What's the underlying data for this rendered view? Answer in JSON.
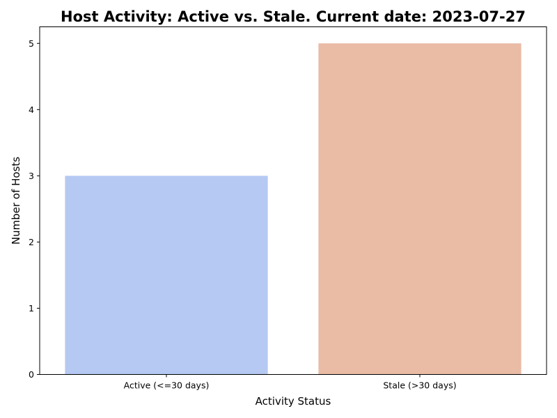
{
  "chart_data": {
    "type": "bar",
    "title": "Host Activity: Active vs. Stale. Current date: 2023-07-27",
    "xlabel": "Activity Status",
    "ylabel": "Number of Hosts",
    "categories": [
      "Active (<=30 days)",
      "Stale (>30 days)"
    ],
    "values": [
      3,
      5
    ],
    "colors": [
      "#b5c9f2",
      "#eabba5"
    ],
    "ylim": [
      0,
      5.25
    ],
    "yticks": [
      "0",
      "1",
      "2",
      "3",
      "4",
      "5"
    ],
    "grid": false,
    "legend": "none"
  }
}
